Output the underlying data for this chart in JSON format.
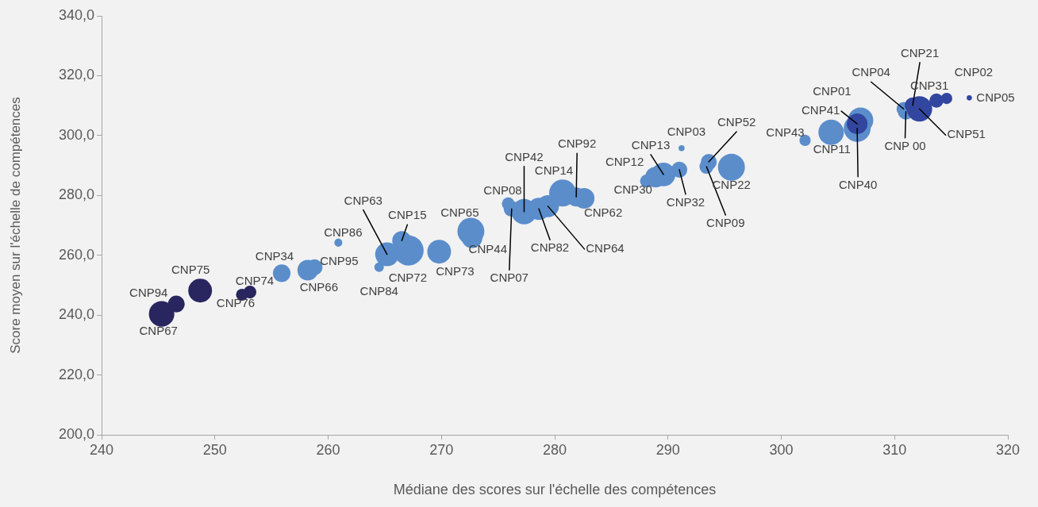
{
  "chart_data": {
    "type": "bubble",
    "xlabel": "Médiane des scores sur l'échelle des compétences",
    "ylabel": "Score moyen sur l'échelle de compétences",
    "x": [
      245.3,
      246.6,
      248.7,
      252.4,
      253.1,
      255.9,
      258.2,
      258.8,
      260.9,
      264.5,
      265.2,
      266.5,
      267.1,
      269.8,
      272.6,
      272.7,
      275.9,
      276.2,
      277.3,
      278.6,
      279.4,
      280.7,
      281.9,
      282.6,
      288.1,
      288.9,
      289.6,
      291.0,
      291.2,
      293.4,
      293.6,
      295.6,
      302.1,
      304.4,
      307.0,
      306.7,
      306.7,
      310.8,
      311.0,
      311.6,
      312.2,
      313.7,
      314.6,
      316.6
    ],
    "values": [
      240.4,
      243.7,
      248.2,
      246.8,
      247.7,
      254.0,
      255.0,
      256.0,
      264.2,
      256.0,
      260.3,
      264.9,
      261.6,
      261.2,
      268.0,
      265.8,
      277.2,
      275.5,
      274.6,
      275.5,
      276.4,
      280.8,
      279.5,
      279.0,
      284.8,
      286.1,
      287.0,
      288.6,
      295.8,
      289.6,
      291.2,
      289.4,
      298.4,
      301.1,
      305.1,
      302.4,
      303.9,
      308.9,
      308.0,
      310.1,
      308.9,
      311.7,
      312.4,
      312.6
    ],
    "sizes": [
      0.71,
      0.31,
      0.62,
      0.16,
      0.18,
      0.34,
      0.47,
      0.28,
      0.07,
      0.1,
      0.62,
      0.4,
      1,
      0.62,
      0.8,
      0.47,
      0.18,
      0.28,
      0.71,
      0.54,
      0.54,
      0.8,
      0.4,
      0.47,
      0.18,
      0.47,
      0.62,
      0.28,
      0.04,
      0.22,
      0.28,
      0.8,
      0.14,
      0.71,
      0.71,
      0.8,
      0.47,
      0.22,
      0.28,
      0.28,
      0.71,
      0.22,
      0.14,
      0.03
    ],
    "colors": [
      "#29255f",
      "#29255f",
      "#29255f",
      "#29255f",
      "#29255f",
      "#5b8dcb",
      "#5b8dcb",
      "#5b8dcb",
      "#5b8dcb",
      "#5b8dcb",
      "#5b8dcb",
      "#5b8dcb",
      "#5b8dcb",
      "#5b8dcb",
      "#5b8dcb",
      "#5b8dcb",
      "#5b8dcb",
      "#5b8dcb",
      "#5b8dcb",
      "#5b8dcb",
      "#5b8dcb",
      "#5b8dcb",
      "#5b8dcb",
      "#5b8dcb",
      "#5b8dcb",
      "#5b8dcb",
      "#5b8dcb",
      "#5b8dcb",
      "#5b8dcb",
      "#5b8dcb",
      "#5b8dcb",
      "#5b8dcb",
      "#5b8dcb",
      "#5b8dcb",
      "#5b8dcb",
      "#5b8dcb",
      "#3246a0",
      "#5b8dcb",
      "#5b8dcb",
      "#3246a0",
      "#3246a0",
      "#3246a0",
      "#3246a0",
      "#3246a0"
    ],
    "value_labels": [
      "CNP67",
      "CNP94",
      "CNP75",
      "CNP76",
      "CNP74",
      "CNP34",
      "CNP66",
      "CNP95",
      "CNP86",
      "CNP84",
      "CNP63",
      "CNP15",
      "CNP72",
      "CNP73",
      "CNP65",
      "CNP44",
      "CNP08",
      "CNP07",
      "CNP42",
      "CNP82",
      "CNP64",
      "CNP14",
      "CNP92",
      "CNP62",
      "CNP30",
      "CNP12",
      "CNP13",
      "CNP32",
      "CNP03",
      "CNP09",
      "CNP52",
      "CNP22",
      "CNP43",
      "CNP11",
      "CNP01",
      "CNP40",
      "CNP41",
      "CNP04",
      "CNP 00",
      "CNP21",
      "CNP51",
      "CNP31",
      "CNP02",
      "CNP05"
    ],
    "xlim": [
      240,
      320
    ],
    "xticks": [
      240,
      250,
      260,
      270,
      280,
      290,
      300,
      310,
      320
    ],
    "ylim": [
      200,
      340
    ],
    "yticks": [
      {
        "value": 200,
        "label": "200,0"
      },
      {
        "value": 220,
        "label": "220,0"
      },
      {
        "value": 240,
        "label": "240,0"
      },
      {
        "value": 260,
        "label": "260,0"
      },
      {
        "value": 280,
        "label": "280,0"
      },
      {
        "value": 300,
        "label": "300,0"
      },
      {
        "value": 320,
        "label": "320,0"
      },
      {
        "value": 340,
        "label": "340,0"
      }
    ],
    "grid": false,
    "legend": false
  }
}
